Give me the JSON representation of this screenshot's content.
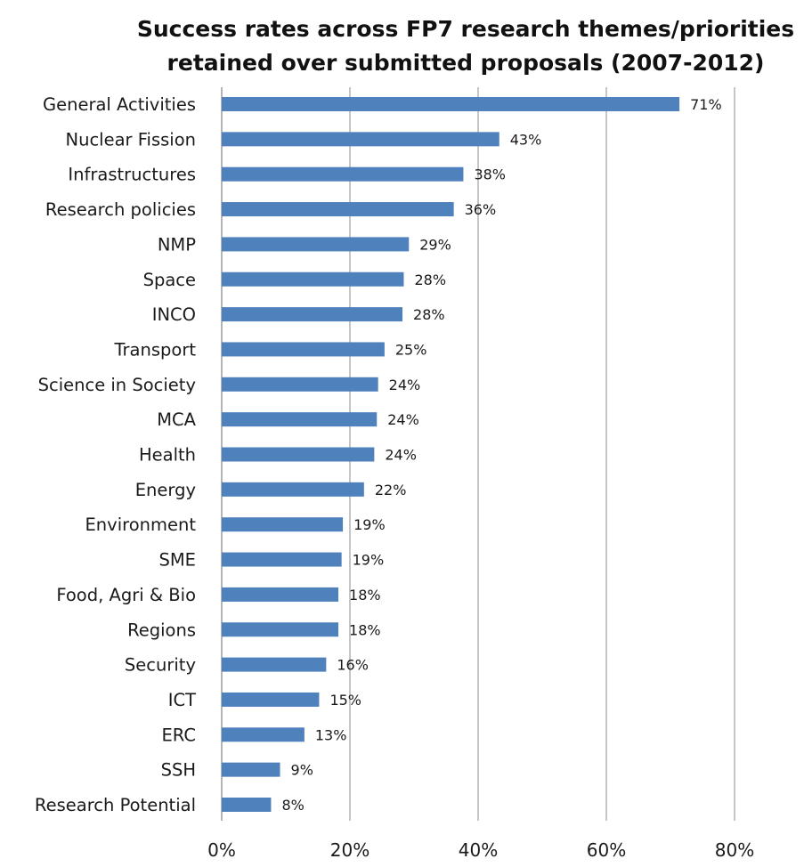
{
  "chart_data": {
    "type": "bar",
    "orientation": "horizontal",
    "title": "Success rates across FP7 research themes/priorities retained over submitted proposals (2007-2012)",
    "title_lines": [
      "Success rates across FP7 research themes/priorities",
      "retained over submitted proposals (2007-2012)"
    ],
    "categories": [
      "General Activities",
      "Nuclear Fission",
      "Infrastructures",
      "Research policies",
      "NMP",
      "Space",
      "INCO",
      "Transport",
      "Science in Society",
      "MCA",
      "Health",
      "Energy",
      "Environment",
      "SME",
      "Food, Agri & Bio",
      "Regions",
      "Security",
      "ICT",
      "ERC",
      "SSH",
      "Research Potential"
    ],
    "values": [
      71.4,
      43.3,
      37.7,
      36.2,
      29.2,
      28.4,
      28.2,
      25.4,
      24.4,
      24.2,
      23.8,
      22.2,
      18.9,
      18.7,
      18.2,
      18.2,
      16.3,
      15.2,
      12.9,
      9.1,
      7.7
    ],
    "value_labels": [
      "71%",
      "43%",
      "38%",
      "36%",
      "29%",
      "28%",
      "28%",
      "25%",
      "24%",
      "24%",
      "24%",
      "22%",
      "19%",
      "19%",
      "18%",
      "18%",
      "16%",
      "15%",
      "13%",
      "9%",
      "8%"
    ],
    "xlim": [
      0,
      80
    ],
    "x_ticks": [
      0,
      20,
      40,
      60,
      80
    ],
    "x_tick_labels": [
      "0%",
      "20%",
      "40%",
      "60%",
      "80%"
    ],
    "xlabel": "",
    "ylabel": "",
    "grid": "vertical",
    "legend": "none",
    "bar_color": "#4f81bd"
  }
}
